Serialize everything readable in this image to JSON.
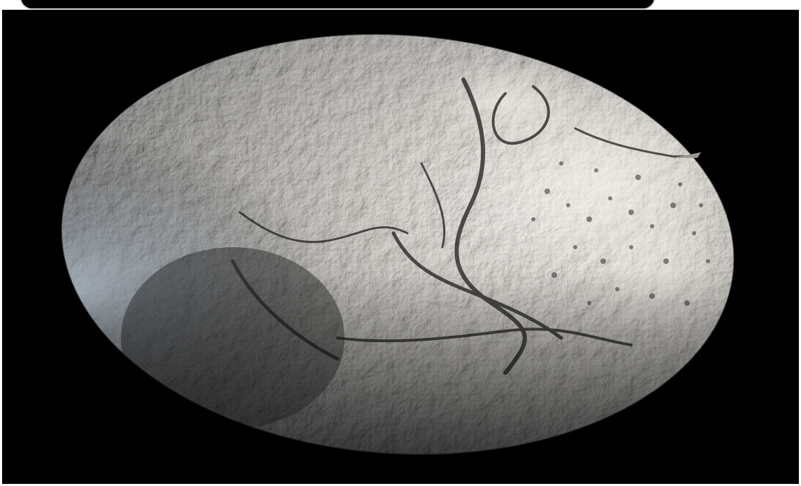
{
  "image": {
    "subject": "planet-globe",
    "background_color": "#000000",
    "frame_border_color": "#ffffff"
  }
}
